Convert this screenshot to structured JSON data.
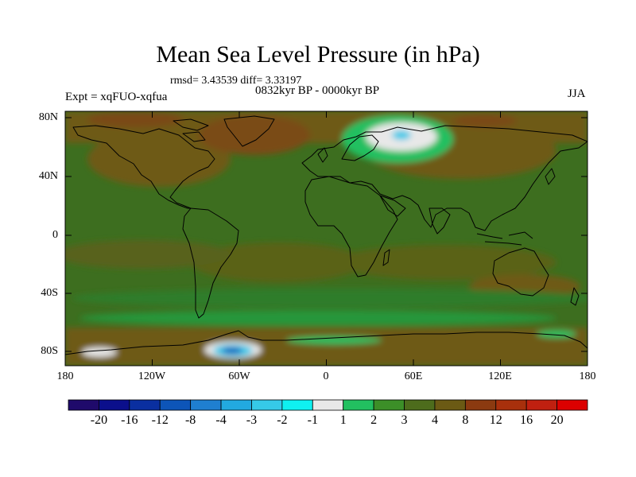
{
  "title": "Mean Sea Level Pressure (in hPa)",
  "stats_line": "rmsd= 3.43539 diff= 3.33197",
  "period": "0832kyr BP - 0000kyr BP",
  "experiment": "Expt = xqFUO-xqfua",
  "season": "JJA",
  "lat_labels": [
    "80N",
    "40N",
    "0",
    "40S",
    "80S"
  ],
  "lon_labels": [
    "180",
    "120W",
    "60W",
    "0",
    "60E",
    "120E",
    "180"
  ],
  "colorbar": {
    "labels": [
      "-20",
      "-16",
      "-12",
      "-8",
      "-4",
      "-3",
      "-2",
      "-1",
      "1",
      "2",
      "3",
      "4",
      "8",
      "12",
      "16",
      "20"
    ],
    "colors": [
      "#1f0a6b",
      "#0b0f8c",
      "#0a2fa0",
      "#0d55b8",
      "#1f7fd0",
      "#22a9e0",
      "#36c9e8",
      "#0ff0f0",
      "#e8e8e8",
      "#22c060",
      "#3c8f28",
      "#4d6c1c",
      "#6b5a14",
      "#8b3a10",
      "#a8300c",
      "#c02010",
      "#dc0000"
    ]
  },
  "colors": {
    "ocean_base": "#3c6e1f",
    "land_low": "#6e5a17",
    "coast": "#000000"
  }
}
